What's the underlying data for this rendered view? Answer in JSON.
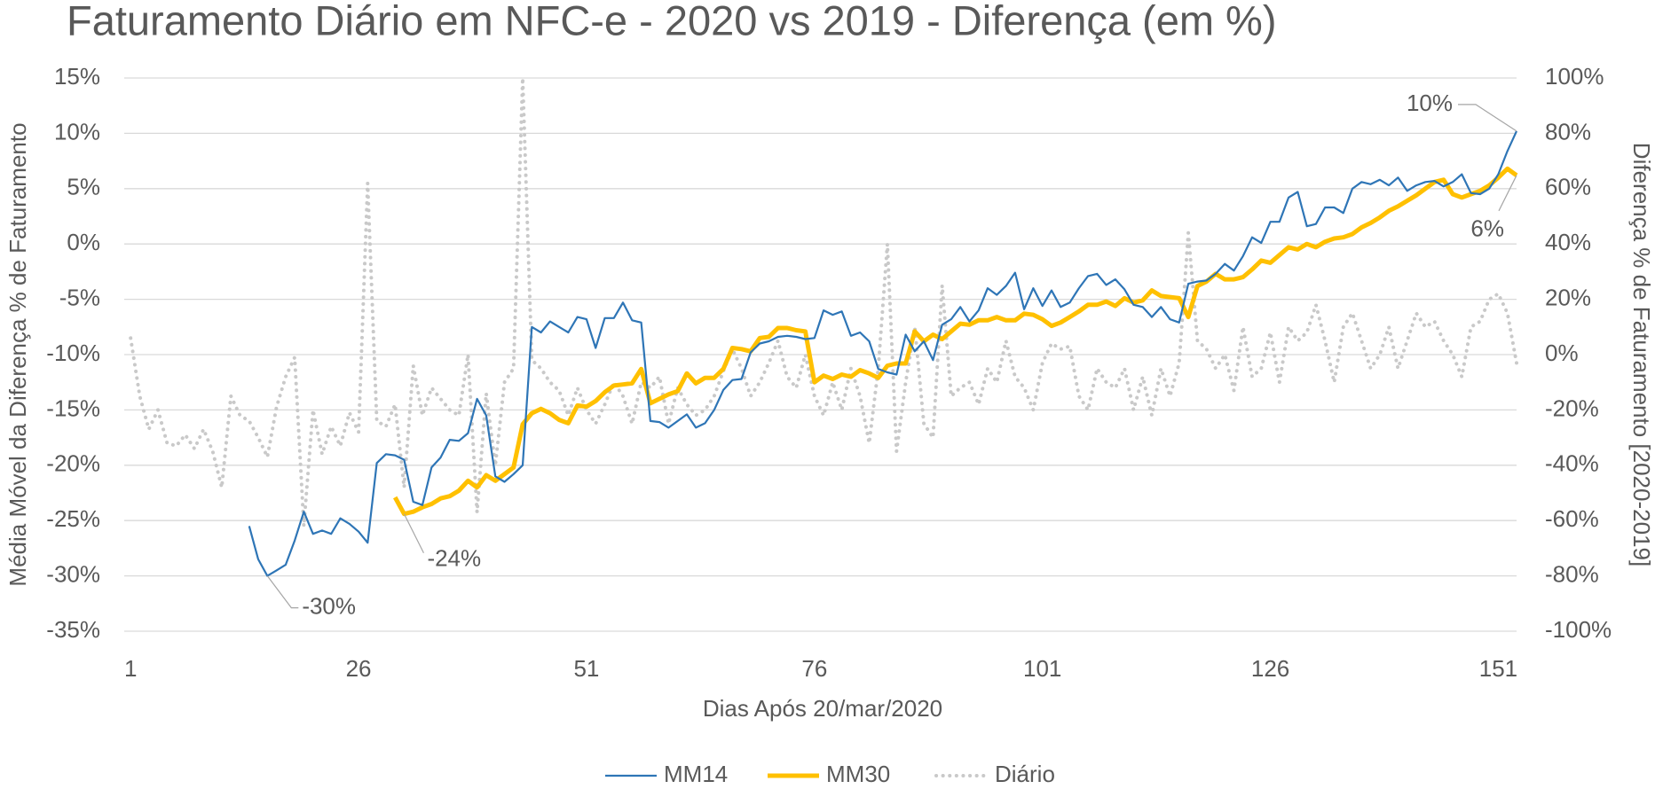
{
  "chart_data": {
    "type": "line",
    "title": "Faturamento Diário em NFC-e - 2020 vs 2019 - Diferença (em %)",
    "xlabel": "Dias Após 20/mar/2020",
    "ylabel": "Média Móvel da Diferença % de Faturamento",
    "y2label": "Diferença % de Faturamento [2020-2019]",
    "grid": true,
    "legend": "bottom",
    "xlim": [
      0.3,
      153
    ],
    "xticks": [
      1,
      26,
      51,
      76,
      101,
      126,
      151
    ],
    "ylim": [
      -35,
      15
    ],
    "yticks": [
      {
        "value": 15,
        "label": "15%"
      },
      {
        "value": 10,
        "label": "10%"
      },
      {
        "value": 5,
        "label": "5%"
      },
      {
        "value": 0,
        "label": "0%"
      },
      {
        "value": -5,
        "label": "-5%"
      },
      {
        "value": -10,
        "label": "-10%"
      },
      {
        "value": -15,
        "label": "-15%"
      },
      {
        "value": -20,
        "label": "-20%"
      },
      {
        "value": -25,
        "label": "-25%"
      },
      {
        "value": -30,
        "label": "-30%"
      },
      {
        "value": -35,
        "label": "-35%"
      }
    ],
    "y2lim": [
      -100,
      100
    ],
    "y2ticks": [
      {
        "value": 100,
        "label": "100%"
      },
      {
        "value": 80,
        "label": "80%"
      },
      {
        "value": 60,
        "label": "60%"
      },
      {
        "value": 40,
        "label": "40%"
      },
      {
        "value": 20,
        "label": "20%"
      },
      {
        "value": 0,
        "label": "0%"
      },
      {
        "value": -20,
        "label": "-20%"
      },
      {
        "value": -40,
        "label": "-40%"
      },
      {
        "value": -60,
        "label": "-60%"
      },
      {
        "value": -80,
        "label": "-80%"
      },
      {
        "value": -100,
        "label": "-100%"
      }
    ],
    "x": [
      1,
      2,
      3,
      4,
      5,
      6,
      7,
      8,
      9,
      10,
      11,
      12,
      13,
      14,
      15,
      16,
      17,
      18,
      19,
      20,
      21,
      22,
      23,
      24,
      25,
      26,
      27,
      28,
      29,
      30,
      31,
      32,
      33,
      34,
      35,
      36,
      37,
      38,
      39,
      40,
      41,
      42,
      43,
      44,
      45,
      46,
      47,
      48,
      49,
      50,
      51,
      52,
      53,
      54,
      55,
      56,
      57,
      58,
      59,
      60,
      61,
      62,
      63,
      64,
      65,
      66,
      67,
      68,
      69,
      70,
      71,
      72,
      73,
      74,
      75,
      76,
      77,
      78,
      79,
      80,
      81,
      82,
      83,
      84,
      85,
      86,
      87,
      88,
      89,
      90,
      91,
      92,
      93,
      94,
      95,
      96,
      97,
      98,
      99,
      100,
      101,
      102,
      103,
      104,
      105,
      106,
      107,
      108,
      109,
      110,
      111,
      112,
      113,
      114,
      115,
      116,
      117,
      118,
      119,
      120,
      121,
      122,
      123,
      124,
      125,
      126,
      127,
      128,
      129,
      130,
      131,
      132,
      133,
      134,
      135,
      136,
      137,
      138,
      139,
      140,
      141,
      142,
      143,
      144,
      145,
      146,
      147,
      148,
      149,
      150,
      151,
      152,
      153
    ],
    "series": [
      {
        "name": "MM14",
        "color": "#2e75b6",
        "line_style": "solid",
        "values": [
          null,
          null,
          null,
          null,
          null,
          null,
          null,
          null,
          null,
          null,
          null,
          null,
          null,
          -25.5,
          -28.5,
          -30,
          -29.5,
          -29,
          -26.8,
          -24.2,
          -26.2,
          -25.9,
          -26.2,
          -24.8,
          -25.3,
          -26,
          -27,
          -19.8,
          -19,
          -19.1,
          -19.5,
          -23.3,
          -23.6,
          -20.2,
          -19.3,
          -17.7,
          -17.8,
          -17.1,
          -14,
          -15.5,
          -21,
          -21.5,
          -20.8,
          -20,
          -7.5,
          -8,
          -7,
          -7.5,
          -8,
          -6.6,
          -6.8,
          -9.4,
          -6.7,
          -6.7,
          -5.3,
          -6.9,
          -7.1,
          -16,
          -16.1,
          -16.6,
          -16,
          -15.4,
          -16.6,
          -16.2,
          -15,
          -13.2,
          -12.3,
          -12.2,
          -9.8,
          -9,
          -8.8,
          -8.4,
          -8.3,
          -8.4,
          -8.6,
          -8.5,
          -6,
          -6.4,
          -6.1,
          -8.3,
          -8,
          -8.8,
          -11.3,
          -11.6,
          -11.8,
          -8.2,
          -9.7,
          -8.8,
          -10.5,
          -7.3,
          -6.8,
          -5.7,
          -7,
          -6,
          -4,
          -4.6,
          -3.8,
          -2.6,
          -5.9,
          -4,
          -5.6,
          -4.2,
          -5.7,
          -5.3,
          -4,
          -2.9,
          -2.7,
          -3.7,
          -3.2,
          -4.1,
          -5.5,
          -5.7,
          -6.6,
          -5.7,
          -6.8,
          -7.1,
          -3.6,
          -3.4,
          -3.3,
          -2.7,
          -1.8,
          -2.4,
          -1.1,
          0.6,
          0.1,
          2,
          2,
          4.2,
          4.7,
          1.6,
          1.8,
          3.3,
          3.3,
          2.8,
          5,
          5.6,
          5.4,
          5.8,
          5.3,
          6,
          4.8,
          5.3,
          5.6,
          5.7,
          5.2,
          5.6,
          6.3,
          4.6,
          4.5,
          5,
          6.3,
          8.4,
          10.2
        ],
        "value_labels": [
          null,
          null,
          null,
          null,
          null,
          null,
          null,
          null,
          null,
          null,
          null,
          null,
          null,
          null,
          null,
          "-30%",
          null,
          null,
          null,
          null,
          null,
          null,
          null,
          null,
          null,
          null,
          null,
          null,
          null,
          null,
          null,
          null,
          null,
          null,
          null,
          null,
          null,
          null,
          null,
          null,
          null,
          null,
          null,
          null,
          null,
          null,
          null,
          null,
          null,
          null,
          null,
          null,
          null,
          null,
          null,
          null,
          null,
          null,
          null,
          null,
          null,
          null,
          null,
          null,
          null,
          null,
          null,
          null,
          null,
          null,
          null,
          null,
          null,
          null,
          null,
          null,
          null,
          null,
          null,
          null,
          null,
          null,
          null,
          null,
          null,
          null,
          null,
          null,
          null,
          null,
          null,
          null,
          null,
          null,
          null,
          null,
          null,
          null,
          null,
          null,
          null,
          null,
          null,
          null,
          null,
          null,
          null,
          null,
          null,
          null,
          null,
          null,
          null,
          null,
          null,
          null,
          null,
          null,
          null,
          null,
          null,
          null,
          null,
          null,
          null,
          null,
          null,
          null,
          null,
          null,
          null,
          null,
          null,
          null,
          null,
          null,
          null,
          null,
          null,
          null,
          null,
          null,
          null,
          null,
          null,
          null,
          null,
          null,
          null,
          null,
          null,
          null,
          "10%"
        ]
      },
      {
        "name": "MM30",
        "color": "#ffc000",
        "line_style": "solid",
        "values": [
          null,
          null,
          null,
          null,
          null,
          null,
          null,
          null,
          null,
          null,
          null,
          null,
          null,
          null,
          null,
          null,
          null,
          null,
          null,
          null,
          null,
          null,
          null,
          null,
          null,
          null,
          null,
          null,
          null,
          -22.9,
          -24.4,
          -24.2,
          -23.8,
          -23.5,
          -23.0,
          -22.8,
          -22.3,
          -21.4,
          -22.0,
          -20.9,
          -21.4,
          -20.8,
          -20.2,
          -16.3,
          -15.3,
          -14.9,
          -15.3,
          -15.9,
          -16.2,
          -14.6,
          -14.7,
          -14.2,
          -13.4,
          -12.8,
          -12.7,
          -12.6,
          -11.3,
          -14.4,
          -14.0,
          -13.6,
          -13.3,
          -11.7,
          -12.6,
          -12.1,
          -12.1,
          -11.3,
          -9.4,
          -9.5,
          -9.7,
          -8.5,
          -8.4,
          -7.6,
          -7.6,
          -7.8,
          -7.9,
          -12.5,
          -11.9,
          -12.2,
          -11.8,
          -12.0,
          -11.4,
          -11.7,
          -12.1,
          -11.0,
          -10.8,
          -10.8,
          -7.9,
          -8.8,
          -8.2,
          -8.6,
          -7.9,
          -7.2,
          -7.3,
          -6.9,
          -6.9,
          -6.6,
          -6.9,
          -6.9,
          -6.3,
          -6.4,
          -6.8,
          -7.4,
          -7.1,
          -6.6,
          -6.1,
          -5.5,
          -5.5,
          -5.2,
          -5.6,
          -4.9,
          -5.3,
          -5.1,
          -4.2,
          -4.7,
          -4.8,
          -4.9,
          -6.6,
          -3.8,
          -3.4,
          -2.7,
          -3.2,
          -3.2,
          -3.0,
          -2.3,
          -1.5,
          -1.7,
          -1.0,
          -0.3,
          -0.5,
          0.0,
          -0.3,
          0.2,
          0.5,
          0.6,
          0.9,
          1.5,
          1.9,
          2.4,
          3.0,
          3.4,
          3.9,
          4.4,
          5.0,
          5.6,
          5.8,
          4.5,
          4.2,
          4.5,
          4.8,
          5.3,
          6.0,
          6.8,
          6.2
        ],
        "value_labels": [
          null,
          null,
          null,
          null,
          null,
          null,
          null,
          null,
          null,
          null,
          null,
          null,
          null,
          null,
          null,
          null,
          null,
          null,
          null,
          null,
          null,
          null,
          null,
          null,
          null,
          null,
          null,
          null,
          null,
          null,
          "-24%",
          null,
          null,
          null,
          null,
          null,
          null,
          null,
          null,
          null,
          null,
          null,
          null,
          null,
          null,
          null,
          null,
          null,
          null,
          null,
          null,
          null,
          null,
          null,
          null,
          null,
          null,
          null,
          null,
          null,
          null,
          null,
          null,
          null,
          null,
          null,
          null,
          null,
          null,
          null,
          null,
          null,
          null,
          null,
          null,
          null,
          null,
          null,
          null,
          null,
          null,
          null,
          null,
          null,
          null,
          null,
          null,
          null,
          null,
          null,
          null,
          null,
          null,
          null,
          null,
          null,
          null,
          null,
          null,
          null,
          null,
          null,
          null,
          null,
          null,
          null,
          null,
          null,
          null,
          null,
          null,
          null,
          null,
          null,
          null,
          null,
          null,
          null,
          null,
          null,
          null,
          null,
          null,
          null,
          null,
          null,
          null,
          null,
          null,
          null,
          null,
          null,
          null,
          null,
          null,
          null,
          null,
          null,
          null,
          null,
          null,
          null,
          null,
          null,
          null,
          null,
          null,
          null,
          null,
          null,
          null,
          null,
          "6%"
        ]
      },
      {
        "name": "Diário",
        "color": "#c9c9c9",
        "line_style": "dotted",
        "axis": "y2",
        "values": [
          6,
          -15,
          -27,
          -20,
          -32,
          -33,
          -29,
          -34,
          -27,
          -35,
          -48,
          -15,
          -22,
          -24,
          -30,
          -37,
          -19,
          -8,
          -1,
          -62,
          -20,
          -36,
          -26,
          -33,
          -21,
          -28,
          62,
          -24,
          -26,
          -18,
          -48,
          -4,
          -22,
          -12,
          -16,
          -20,
          -22,
          0,
          -57,
          -14,
          -40,
          -10,
          -5,
          100,
          -2,
          -5,
          -10,
          -13,
          -22,
          -12,
          -20,
          -25,
          -18,
          -10,
          -15,
          -25,
          -10,
          -12,
          -8,
          -25,
          -12,
          -18,
          -22,
          -20,
          -15,
          -6,
          2,
          -5,
          -15,
          -10,
          -3,
          5,
          -8,
          -12,
          0,
          -15,
          -22,
          -10,
          -20,
          -5,
          -15,
          -32,
          -5,
          40,
          -35,
          -10,
          10,
          -25,
          -30,
          25,
          -15,
          -12,
          -10,
          -18,
          -5,
          -10,
          5,
          -8,
          -12,
          -20,
          -3,
          4,
          2,
          3,
          -15,
          -20,
          -5,
          -10,
          -12,
          -5,
          -20,
          -8,
          -22,
          -5,
          -15,
          -3,
          44,
          5,
          2,
          -5,
          0,
          -13,
          10,
          -8,
          -5,
          8,
          -10,
          10,
          5,
          8,
          18,
          5,
          -10,
          10,
          15,
          5,
          -5,
          0,
          10,
          -5,
          5,
          15,
          10,
          12,
          5,
          0,
          -8,
          10,
          12,
          20,
          22,
          15,
          -3
        ]
      }
    ]
  }
}
